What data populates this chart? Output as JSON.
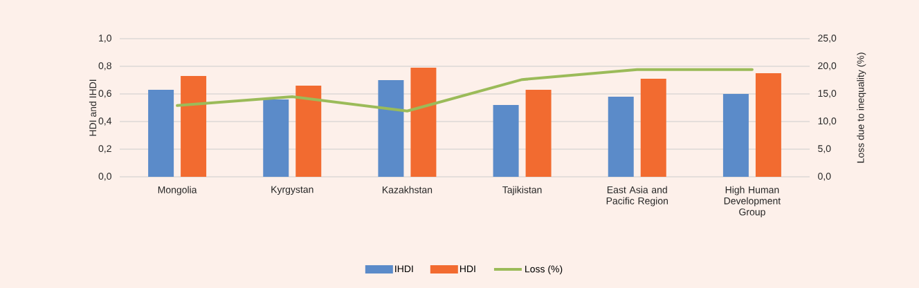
{
  "chart_data": {
    "type": "bar",
    "ylabel": "HDI and IHDI",
    "y2label": "Loss due to inequality (%)",
    "categories": [
      "Mongolia",
      "Kyrgystan",
      "Kazakhstan",
      "Tajikistan",
      "East Asia and Pacific Region",
      "High Human Development Group"
    ],
    "series": [
      {
        "name": "IHDI",
        "color": "#5b8bc9",
        "values": [
          0.63,
          0.56,
          0.7,
          0.52,
          0.58,
          0.6
        ]
      },
      {
        "name": "HDI",
        "color": "#f26b30",
        "values": [
          0.73,
          0.66,
          0.79,
          0.63,
          0.71,
          0.75
        ]
      },
      {
        "name": "Loss (%)",
        "type": "line",
        "axis": "y2",
        "color": "#9bbb59",
        "marker": "none",
        "values": [
          12.9,
          14.5,
          11.9,
          17.6,
          19.4,
          19.4
        ]
      }
    ],
    "ylim": [
      0,
      1
    ],
    "yticks": [
      {
        "value": 0,
        "label": "0,0"
      },
      {
        "value": 0.2,
        "label": "0,2"
      },
      {
        "value": 0.4,
        "label": "0,4"
      },
      {
        "value": 0.6,
        "label": "0,6"
      },
      {
        "value": 0.8,
        "label": "0,8"
      },
      {
        "value": 1,
        "label": "1,0"
      }
    ],
    "y2lim": [
      0,
      25
    ],
    "y2ticks": [
      {
        "value": 0,
        "label": "0,0"
      },
      {
        "value": 5,
        "label": "5,0"
      },
      {
        "value": 10,
        "label": "10,0"
      },
      {
        "value": 15,
        "label": "15,0"
      },
      {
        "value": 20,
        "label": "20,0"
      },
      {
        "value": 25,
        "label": "25,0"
      }
    ],
    "grid": "y",
    "legend": "bottom"
  }
}
